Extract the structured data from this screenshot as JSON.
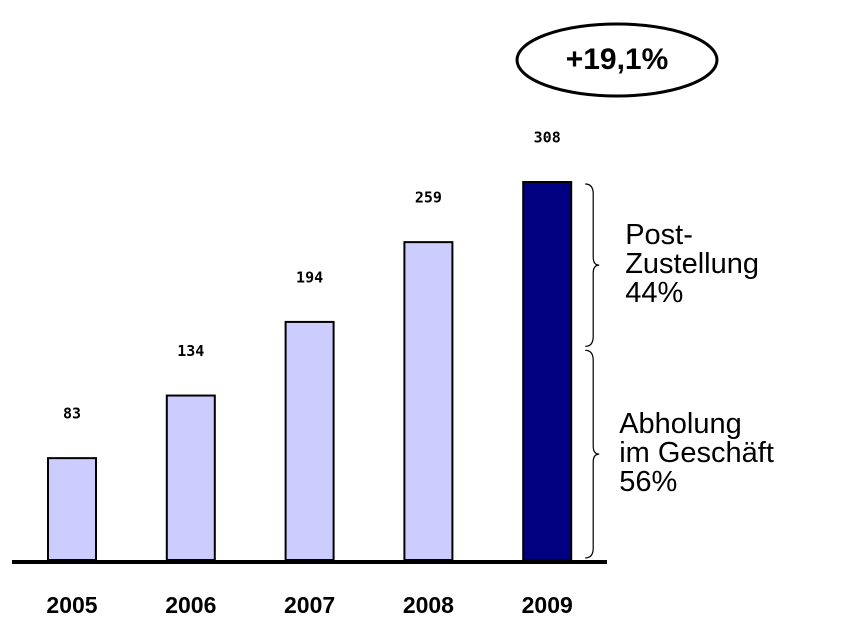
{
  "chart_data": {
    "type": "bar",
    "categories": [
      "2005",
      "2006",
      "2007",
      "2008",
      "2009"
    ],
    "values": [
      83,
      134,
      194,
      259,
      308
    ],
    "colors": [
      "#ccccff",
      "#ccccff",
      "#ccccff",
      "#ccccff",
      "#000080"
    ],
    "ylim": [
      0,
      330
    ],
    "annotation": "+19,1%",
    "breakdown": {
      "categories": [
        [
          "Abholung",
          "im Geschäft"
        ],
        [
          "Post-",
          "Zustellung"
        ]
      ],
      "values": [
        56,
        44
      ],
      "value_labels": [
        "56%",
        "44%"
      ]
    }
  }
}
